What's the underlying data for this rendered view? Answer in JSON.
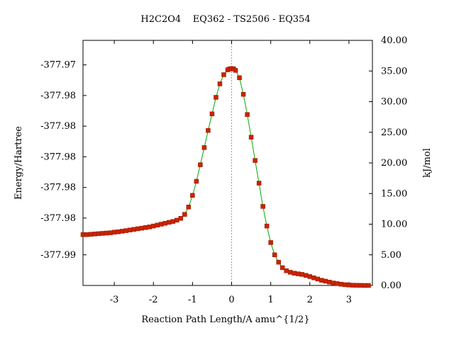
{
  "chart_data": {
    "type": "line",
    "title": "H2C2O4    EQ362 - TS2506 - EQ354",
    "xlabel": "Reaction Path Length/A amu^{1/2}",
    "ylabel_left": "Energy/Hartree",
    "ylabel_right": "kJ/mol",
    "xlim": [
      -3.8,
      3.6
    ],
    "ylim_right": [
      0,
      40
    ],
    "x_ticks": [
      -3,
      -2,
      -1,
      0,
      1,
      2,
      3
    ],
    "x_tick_labels": [
      "-3",
      "-2",
      "-1",
      "0",
      "1",
      "2",
      "3"
    ],
    "left_tick_labels": [
      "-377.97",
      "-377.98",
      "-377.98",
      "-377.98",
      "-377.98",
      "-377.98",
      "-377.99"
    ],
    "left_tick_kjmol": [
      36,
      31,
      26,
      21,
      16,
      11,
      5
    ],
    "right_ticks": [
      0,
      5,
      10,
      15,
      20,
      25,
      30,
      35,
      40
    ],
    "right_tick_labels": [
      "0.00",
      "5.00",
      "10.00",
      "15.00",
      "20.00",
      "25.00",
      "30.00",
      "35.00",
      "40.00"
    ],
    "ts_marker_x": 0,
    "colors": {
      "line": "#00aa00",
      "point": "#cc2200",
      "point_edge": "#8b1a00",
      "ts_line": "#999999"
    },
    "series": [
      {
        "x": [
          -3.8,
          -3.7,
          -3.6,
          -3.5,
          -3.4,
          -3.3,
          -3.2,
          -3.1,
          -3.0,
          -2.9,
          -2.8,
          -2.7,
          -2.6,
          -2.5,
          -2.4,
          -2.3,
          -2.2,
          -2.1,
          -2.0,
          -1.9,
          -1.8,
          -1.7,
          -1.6,
          -1.5,
          -1.4,
          -1.3,
          -1.2,
          -1.1,
          -1.0,
          -0.9,
          -0.8,
          -0.7,
          -0.6,
          -0.5,
          -0.4,
          -0.3,
          -0.2,
          -0.1,
          -0.05,
          0.0,
          0.05,
          0.1,
          0.2,
          0.3,
          0.4,
          0.5,
          0.6,
          0.7,
          0.8,
          0.9,
          1.0,
          1.1,
          1.2,
          1.3,
          1.4,
          1.5,
          1.6,
          1.7,
          1.8,
          1.9,
          2.0,
          2.1,
          2.2,
          2.3,
          2.4,
          2.5,
          2.6,
          2.7,
          2.8,
          2.9,
          3.0,
          3.1,
          3.2,
          3.3,
          3.4,
          3.5
        ],
        "y": [
          8.3,
          8.3,
          8.35,
          8.4,
          8.45,
          8.5,
          8.55,
          8.6,
          8.7,
          8.75,
          8.85,
          8.95,
          9.05,
          9.15,
          9.25,
          9.35,
          9.45,
          9.55,
          9.7,
          9.85,
          10.0,
          10.15,
          10.3,
          10.45,
          10.65,
          10.95,
          11.6,
          12.8,
          14.7,
          17.0,
          19.7,
          22.5,
          25.3,
          28.0,
          30.7,
          32.9,
          34.4,
          35.2,
          35.35,
          35.4,
          35.35,
          35.1,
          33.9,
          31.2,
          27.9,
          24.2,
          20.4,
          16.7,
          12.9,
          9.7,
          7.0,
          5.0,
          3.8,
          2.9,
          2.4,
          2.15,
          2.0,
          1.9,
          1.8,
          1.65,
          1.45,
          1.25,
          1.05,
          0.85,
          0.7,
          0.55,
          0.4,
          0.3,
          0.2,
          0.12,
          0.07,
          0.04,
          0.02,
          0.01,
          0.0,
          0.0
        ]
      }
    ]
  }
}
